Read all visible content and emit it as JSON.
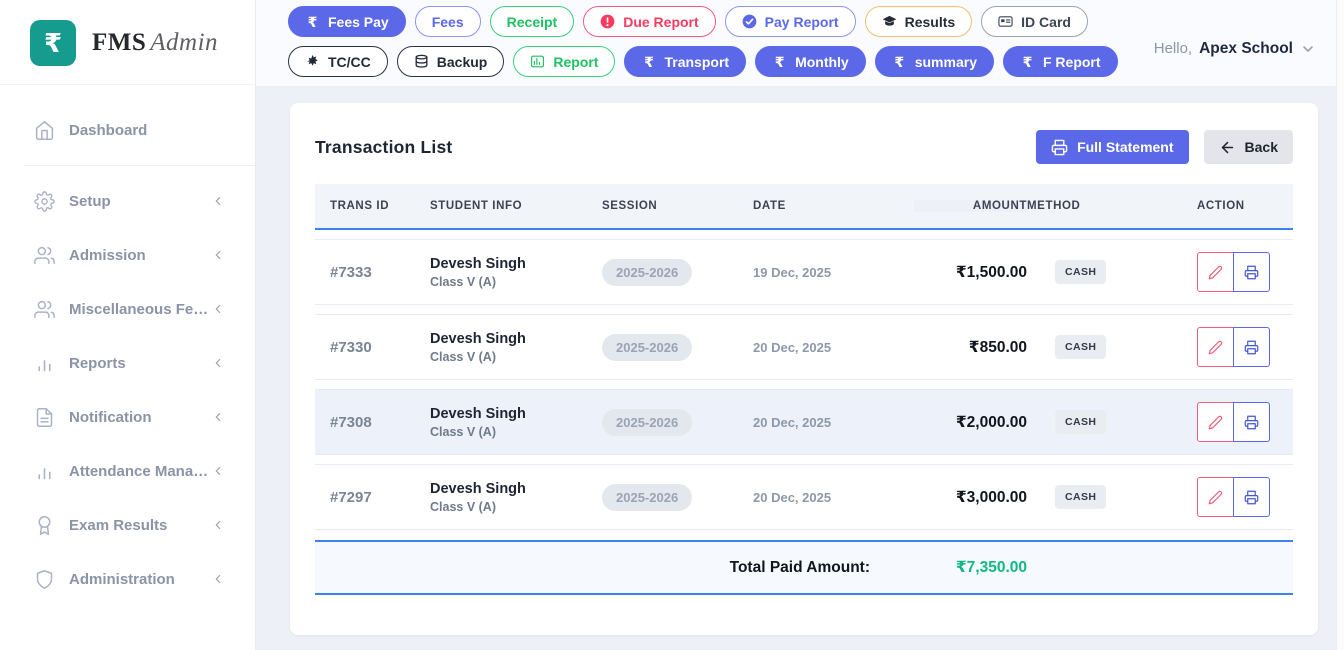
{
  "colors": {
    "accent_indigo": "#5b68e8",
    "table_border_blue": "#3b82f6",
    "total_green": "#10b981",
    "alert_red": "#f43b61",
    "logo_teal": "#169c8e"
  },
  "brand": {
    "logo_symbol": "₹",
    "name_bold": "FMS",
    "name_light": "Admin"
  },
  "header": {
    "greeting": "Hello,",
    "user": "Apex School",
    "nav_row1": [
      {
        "label": "Fees Pay",
        "icon": "rupee",
        "style": "filled-indigo"
      },
      {
        "label": "Fees",
        "icon": "",
        "style": "outline-indigo"
      },
      {
        "label": "Receipt",
        "icon": "",
        "style": "outline-green"
      },
      {
        "label": "Due Report",
        "icon": "alert-circle",
        "style": "outline-red"
      },
      {
        "label": "Pay Report",
        "icon": "check-circle",
        "style": "outline-indigo"
      },
      {
        "label": "Results",
        "icon": "graduation-cap",
        "style": "outline-orange"
      },
      {
        "label": "ID Card",
        "icon": "id-card",
        "style": "outline-gray"
      }
    ],
    "nav_row2": [
      {
        "label": "TC/CC",
        "icon": "gear-solid",
        "style": "outline-dark"
      },
      {
        "label": "Backup",
        "icon": "database",
        "style": "outline-dark"
      },
      {
        "label": "Report",
        "icon": "bar-chart-board",
        "style": "outline-green"
      },
      {
        "label": "Transport",
        "icon": "rupee",
        "style": "filled-indigo"
      },
      {
        "label": "Monthly",
        "icon": "rupee",
        "style": "filled-indigo"
      },
      {
        "label": "summary",
        "icon": "rupee",
        "style": "filled-indigo"
      },
      {
        "label": "F Report",
        "icon": "rupee",
        "style": "filled-indigo"
      }
    ]
  },
  "sidebar": {
    "items": [
      {
        "label": "Dashboard",
        "icon": "home",
        "expandable": false
      },
      {
        "label": "Setup",
        "icon": "gear",
        "expandable": true
      },
      {
        "label": "Admission",
        "icon": "users",
        "expandable": true
      },
      {
        "label": "Miscellaneous Fe…",
        "icon": "users",
        "expandable": true
      },
      {
        "label": "Reports",
        "icon": "bar-chart",
        "expandable": true
      },
      {
        "label": "Notification",
        "icon": "file-text",
        "expandable": true
      },
      {
        "label": "Attendance Mana…",
        "icon": "bar-chart",
        "expandable": true
      },
      {
        "label": "Exam Results",
        "icon": "award",
        "expandable": true
      },
      {
        "label": "Administration",
        "icon": "shield",
        "expandable": true
      }
    ]
  },
  "main": {
    "title": "Transaction List",
    "full_statement_label": "Full Statement",
    "back_label": "Back",
    "table": {
      "headers": [
        "TRANS ID",
        "STUDENT INFO",
        "SESSION",
        "DATE",
        "AMOUNT",
        "METHOD",
        "ACTION"
      ],
      "row_actions": [
        {
          "name": "edit",
          "icon": "edit"
        },
        {
          "name": "print",
          "icon": "printer"
        }
      ],
      "rows": [
        {
          "trans_id": "#7333",
          "student_name": "Devesh Singh",
          "student_class": "Class V (A)",
          "session": "2025-2026",
          "date": "19 Dec, 2025",
          "amount": "₹1,500.00",
          "method": "CASH",
          "highlighted": false
        },
        {
          "trans_id": "#7330",
          "student_name": "Devesh Singh",
          "student_class": "Class V (A)",
          "session": "2025-2026",
          "date": "20 Dec, 2025",
          "amount": "₹850.00",
          "method": "CASH",
          "highlighted": false
        },
        {
          "trans_id": "#7308",
          "student_name": "Devesh Singh",
          "student_class": "Class V (A)",
          "session": "2025-2026",
          "date": "20 Dec, 2025",
          "amount": "₹2,000.00",
          "method": "CASH",
          "highlighted": true
        },
        {
          "trans_id": "#7297",
          "student_name": "Devesh Singh",
          "student_class": "Class V (A)",
          "session": "2025-2026",
          "date": "20 Dec, 2025",
          "amount": "₹3,000.00",
          "method": "CASH",
          "highlighted": false
        }
      ],
      "total_label": "Total Paid Amount:",
      "total_amount": "₹7,350.00"
    }
  }
}
